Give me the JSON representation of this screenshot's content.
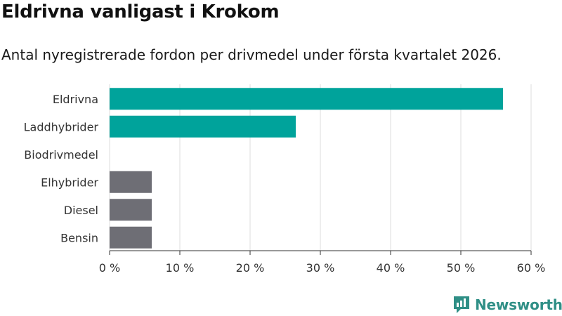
{
  "title": "Eldrivna vanligast i Krokom",
  "subtitle": "Antal nyregistrerade fordon per drivmedel under första kvartalet 2026.",
  "brand": {
    "name": "Newsworthy",
    "icon": "newsworthy-logo-icon",
    "color": "#2f8f86"
  },
  "chart_data": {
    "type": "bar",
    "orientation": "horizontal",
    "categories": [
      "Eldrivna",
      "Laddhybrider",
      "Biodrivmedel",
      "Elhybrider",
      "Diesel",
      "Bensin"
    ],
    "values": [
      56,
      26.5,
      0,
      6,
      6,
      6
    ],
    "colors": [
      "#00a39b",
      "#00a39b",
      "#00a39b",
      "#6e6e75",
      "#6e6e75",
      "#6e6e75"
    ],
    "xlim": [
      0,
      60
    ],
    "xticks": [
      0,
      10,
      20,
      30,
      40,
      50,
      60
    ],
    "xtick_labels": [
      "0 %",
      "10 %",
      "20 %",
      "30 %",
      "40 %",
      "50 %",
      "60 %"
    ],
    "grid": true,
    "xlabel": "",
    "ylabel": ""
  }
}
